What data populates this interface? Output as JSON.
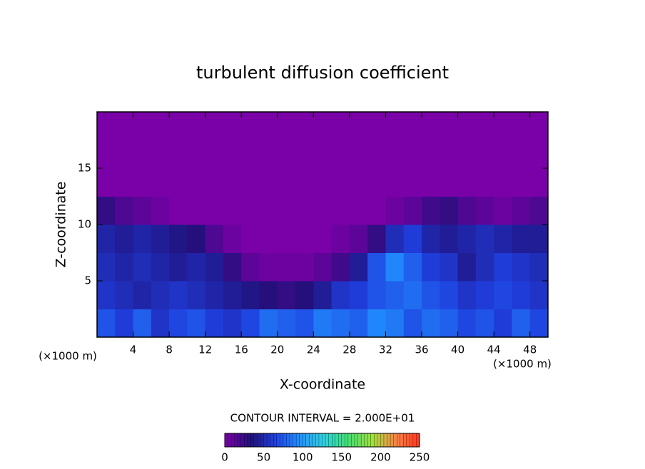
{
  "chart_data": {
    "type": "contour",
    "title": "turbulent diffusion coefficient",
    "xlabel": "X-coordinate",
    "ylabel": "Z-coordinate",
    "axis_unit_labels": [
      "(×1000 m)",
      "(×1000 m)"
    ],
    "annotation": "CONTOUR INTERVAL = 2.000E+01",
    "xlim": [
      0,
      50
    ],
    "xticks": [
      4,
      8,
      12,
      16,
      20,
      24,
      28,
      32,
      36,
      40,
      44,
      48
    ],
    "ylim": [
      0,
      20
    ],
    "yticks": [
      5,
      10,
      15
    ],
    "colorbar_lim": [
      0,
      250
    ],
    "colorbar_ticks": [
      0,
      50,
      100,
      150,
      200,
      250
    ],
    "colormap": [
      "#7a00a8",
      "#20107a",
      "#2040e0",
      "#2090ff",
      "#30d0e0",
      "#40e070",
      "#a0e040",
      "#ff8040",
      "#ff3020"
    ],
    "z": [
      [
        70,
        60,
        75,
        55,
        65,
        70,
        60,
        55,
        65,
        80,
        75,
        70,
        85,
        80,
        75,
        90,
        85,
        70,
        80,
        75,
        65,
        70,
        60,
        75,
        65
      ],
      [
        55,
        50,
        45,
        50,
        55,
        50,
        45,
        40,
        35,
        30,
        25,
        30,
        40,
        55,
        60,
        70,
        75,
        80,
        70,
        65,
        55,
        60,
        65,
        60,
        55
      ],
      [
        50,
        45,
        50,
        45,
        40,
        45,
        40,
        25,
        10,
        5,
        5,
        5,
        10,
        20,
        40,
        70,
        90,
        75,
        60,
        55,
        40,
        50,
        60,
        55,
        50
      ],
      [
        45,
        40,
        45,
        40,
        35,
        30,
        15,
        5,
        0,
        0,
        0,
        0,
        0,
        5,
        10,
        25,
        50,
        60,
        45,
        40,
        45,
        50,
        45,
        40,
        40
      ],
      [
        25,
        15,
        10,
        5,
        0,
        0,
        0,
        0,
        0,
        0,
        0,
        0,
        0,
        0,
        0,
        0,
        5,
        10,
        20,
        25,
        15,
        10,
        5,
        10,
        15
      ],
      [
        0,
        0,
        0,
        0,
        0,
        0,
        0,
        0,
        0,
        0,
        0,
        0,
        0,
        0,
        0,
        0,
        0,
        0,
        0,
        0,
        0,
        0,
        0,
        0,
        0
      ],
      [
        0,
        0,
        0,
        0,
        0,
        0,
        0,
        0,
        0,
        0,
        0,
        0,
        0,
        0,
        0,
        0,
        0,
        0,
        0,
        0,
        0,
        0,
        0,
        0,
        0
      ],
      [
        0,
        0,
        0,
        0,
        0,
        0,
        0,
        0,
        0,
        0,
        0,
        0,
        0,
        0,
        0,
        0,
        0,
        0,
        0,
        0,
        0,
        0,
        0,
        0,
        0
      ]
    ]
  }
}
